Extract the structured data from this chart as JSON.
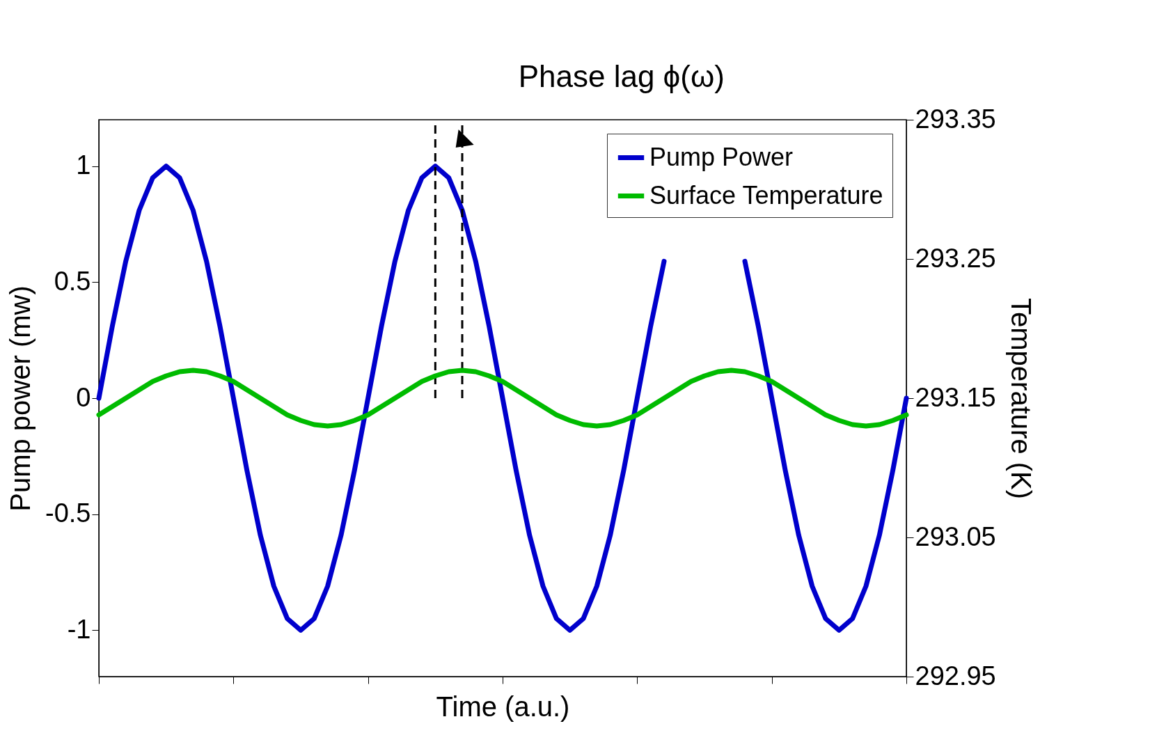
{
  "chart_data": {
    "type": "line",
    "xlabel": "Time (a.u.)",
    "ylabel": "Pump power (mw)",
    "y2label": "Temperature (K)",
    "categories": [
      null,
      null,
      null,
      null,
      null,
      null,
      null,
      null,
      null,
      null,
      null,
      null,
      null,
      null,
      null,
      null,
      null,
      null,
      null,
      null,
      null,
      null,
      null,
      null,
      null,
      null,
      null,
      null,
      null,
      null,
      null,
      null,
      null,
      null,
      null,
      null,
      null,
      null,
      null,
      null,
      null,
      null,
      null,
      null,
      null,
      null,
      null,
      null,
      null,
      null,
      null,
      null,
      null,
      null,
      null,
      null,
      null,
      null,
      null,
      null,
      null
    ],
    "series": [
      {
        "name": "Pump Power",
        "color": "#0000cc",
        "values": [
          0,
          0.31,
          0.59,
          0.81,
          0.95,
          1,
          0.95,
          0.81,
          0.59,
          0.31,
          0,
          -0.31,
          -0.59,
          -0.81,
          -0.95,
          -1,
          -0.95,
          -0.81,
          -0.59,
          -0.31,
          0,
          0.31,
          0.59,
          0.81,
          0.95,
          1,
          0.95,
          0.81,
          0.59,
          0.31,
          0,
          -0.31,
          -0.59,
          -0.81,
          -0.95,
          -1,
          -0.95,
          -0.81,
          -0.59,
          -0.31,
          0,
          0.31,
          0.59,
          null,
          null,
          null,
          null,
          null,
          0.59,
          0.31,
          0,
          -0.31,
          -0.59,
          -0.81,
          -0.95,
          -1,
          -0.95,
          -0.81,
          -0.59,
          -0.31,
          0
        ]
      },
      {
        "name": "Surface Temperature",
        "color": "#00bb00",
        "axis": "y2",
        "values": [
          293.138,
          293.144,
          293.15,
          293.156,
          293.162,
          293.166,
          293.169,
          293.17,
          293.169,
          293.166,
          293.162,
          293.156,
          293.15,
          293.144,
          293.138,
          293.134,
          293.131,
          293.13,
          293.131,
          293.134,
          293.138,
          293.144,
          293.15,
          293.156,
          293.162,
          293.166,
          293.169,
          293.17,
          293.169,
          293.166,
          293.162,
          293.156,
          293.15,
          293.144,
          293.138,
          293.134,
          293.131,
          293.13,
          293.131,
          293.134,
          293.138,
          293.144,
          293.15,
          293.156,
          293.162,
          293.166,
          293.169,
          293.17,
          293.169,
          293.166,
          293.162,
          293.156,
          293.15,
          293.144,
          293.138,
          293.134,
          293.131,
          293.13,
          293.131,
          293.134,
          293.138
        ]
      }
    ],
    "ylim": [
      -1.2,
      1.2
    ],
    "yticks": [
      -1,
      -0.5,
      0,
      0.5,
      1
    ],
    "y2lim": [
      292.95,
      293.35
    ],
    "y2ticks": [
      292.95,
      293.05,
      293.15,
      293.25,
      293.35
    ],
    "annotations": [
      "Phase lag ϕ(ω)"
    ],
    "tick_labels": "y",
    "grid": false,
    "legend": "top right",
    "marker": "none",
    "line_style": "solid"
  }
}
